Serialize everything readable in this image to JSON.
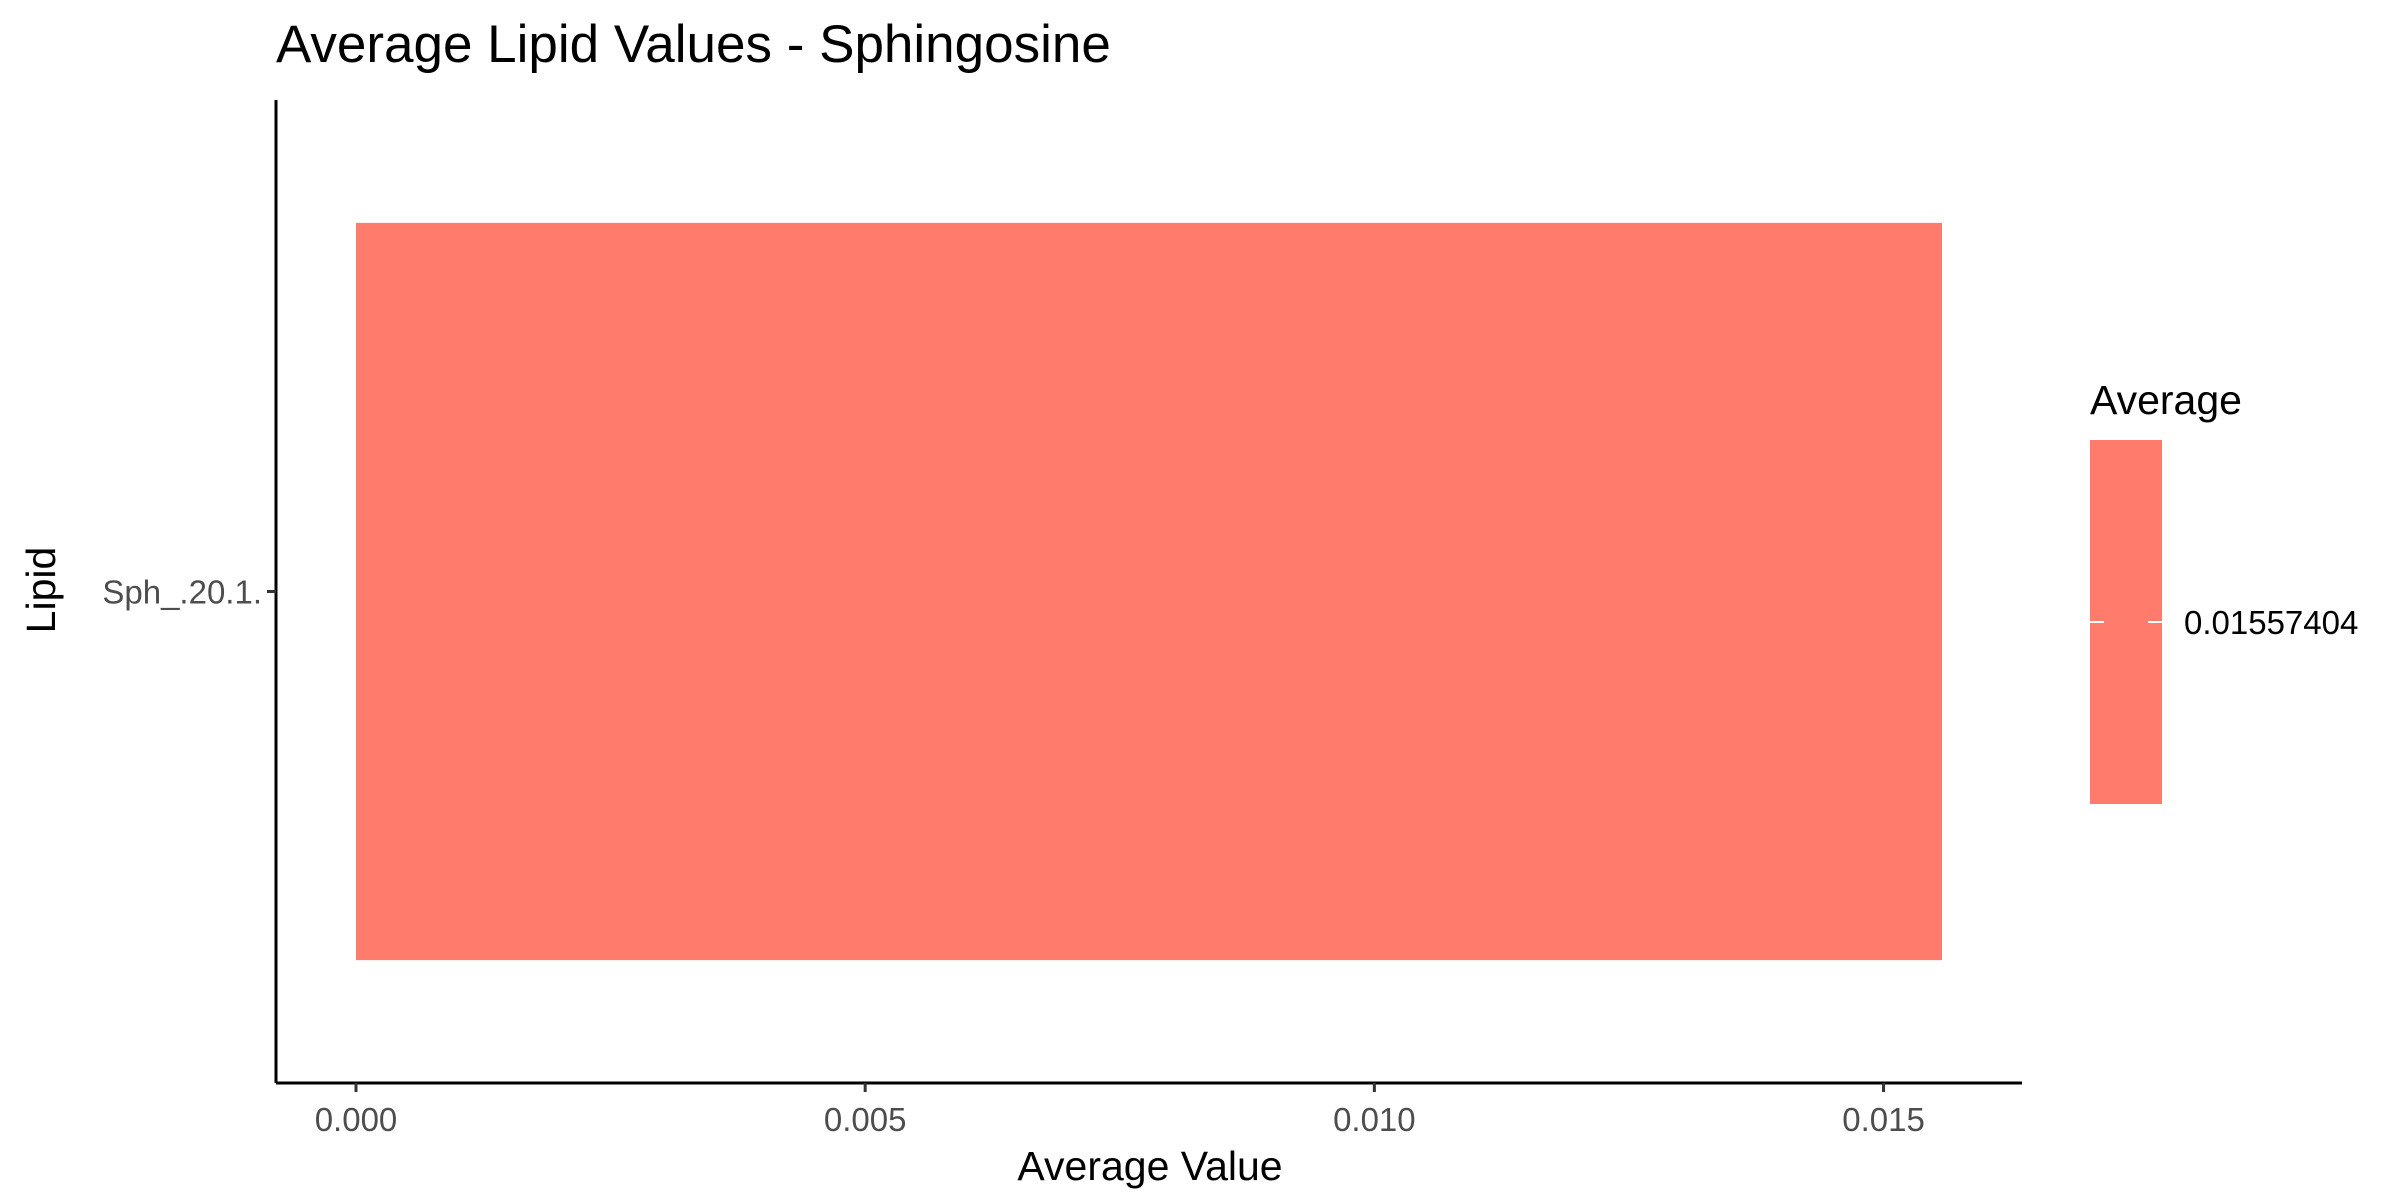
{
  "chart_data": {
    "type": "bar",
    "orientation": "horizontal",
    "title": "Average Lipid Values - Sphingosine",
    "xlabel": "Average Value",
    "ylabel": "Lipid",
    "categories": [
      "Sph_.20.1."
    ],
    "values": [
      0.01557404
    ],
    "xlim": [
      0,
      0.0163
    ],
    "xticks": [
      0,
      0.005,
      0.01,
      0.015
    ],
    "xtick_labels": [
      "0.000",
      "0.005",
      "0.010",
      "0.015"
    ],
    "grid": false,
    "legend": {
      "title": "Average",
      "placement": "right",
      "entries": [
        "0.01557404"
      ]
    },
    "colors": {
      "bar": "#FF7B6C"
    }
  }
}
